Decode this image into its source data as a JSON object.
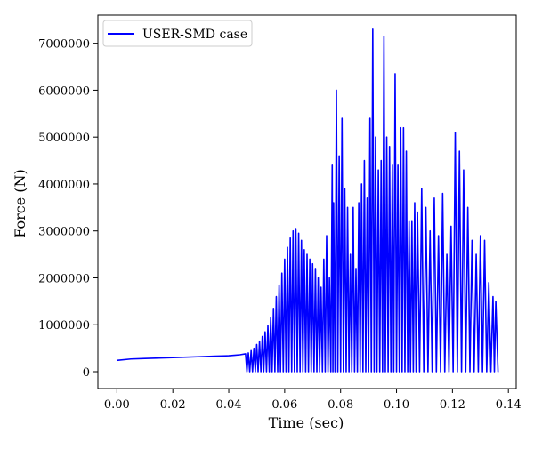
{
  "colors": {
    "series": "#0000ff",
    "axis": "#000000",
    "background": "#ffffff",
    "legend_border": "#cccccc"
  },
  "chart_data": {
    "type": "line",
    "title": "",
    "xlabel": "Time (sec)",
    "ylabel": "Force (N)",
    "xlim": [
      -0.0068,
      0.1428
    ],
    "ylim": [
      -360000,
      7600000
    ],
    "x_ticks": [
      0.0,
      0.02,
      0.04,
      0.06,
      0.08,
      0.1,
      0.12,
      0.14
    ],
    "x_tick_labels": [
      "0.00",
      "0.02",
      "0.04",
      "0.06",
      "0.08",
      "0.10",
      "0.12",
      "0.14"
    ],
    "y_ticks": [
      0,
      1000000,
      2000000,
      3000000,
      4000000,
      5000000,
      6000000,
      7000000
    ],
    "y_tick_labels": [
      "0",
      "1000000",
      "2000000",
      "3000000",
      "4000000",
      "5000000",
      "6000000",
      "7000000"
    ],
    "grid": false,
    "legend_position": "top-left",
    "series": [
      {
        "name": "USER-SMD case",
        "color": "#0000ff",
        "peaks": {
          "x": [
            0.047,
            0.048,
            0.049,
            0.05,
            0.051,
            0.052,
            0.053,
            0.054,
            0.055,
            0.056,
            0.057,
            0.058,
            0.059,
            0.06,
            0.061,
            0.062,
            0.063,
            0.064,
            0.065,
            0.066,
            0.067,
            0.068,
            0.069,
            0.07,
            0.071,
            0.072,
            0.073,
            0.074,
            0.075,
            0.076,
            0.077,
            0.0775,
            0.0785,
            0.0795,
            0.0805,
            0.0815,
            0.0825,
            0.0835,
            0.0845,
            0.0855,
            0.0865,
            0.0875,
            0.0885,
            0.0895,
            0.0905,
            0.0915,
            0.0925,
            0.0935,
            0.0945,
            0.0955,
            0.0965,
            0.0975,
            0.0985,
            0.0995,
            0.1005,
            0.1015,
            0.1025,
            0.1035,
            0.1045,
            0.1055,
            0.1065,
            0.1075,
            0.109,
            0.1105,
            0.112,
            0.1135,
            0.115,
            0.1165,
            0.118,
            0.1195,
            0.121,
            0.1225,
            0.124,
            0.1255,
            0.127,
            0.1285,
            0.13,
            0.1315,
            0.133,
            0.1345,
            0.1355
          ],
          "y": [
            400000,
            450000,
            500000,
            580000,
            650000,
            750000,
            850000,
            980000,
            1150000,
            1350000,
            1600000,
            1850000,
            2100000,
            2400000,
            2650000,
            2850000,
            3000000,
            3050000,
            2950000,
            2800000,
            2600000,
            2500000,
            2400000,
            2300000,
            2200000,
            2000000,
            1800000,
            2400000,
            2900000,
            2000000,
            4400000,
            3600000,
            6000000,
            4600000,
            5400000,
            3900000,
            3500000,
            2500000,
            3500000,
            2200000,
            3600000,
            4000000,
            4500000,
            3700000,
            5400000,
            7300000,
            5000000,
            4300000,
            4500000,
            7150000,
            5000000,
            4800000,
            4400000,
            6350000,
            4400000,
            5200000,
            5200000,
            4700000,
            3200000,
            3200000,
            3600000,
            3400000,
            3900000,
            3500000,
            3000000,
            3700000,
            2900000,
            3800000,
            2500000,
            3100000,
            5100000,
            4700000,
            4300000,
            3500000,
            2800000,
            2500000,
            2900000,
            2800000,
            1900000,
            1600000,
            1500000
          ]
        },
        "baseline": {
          "x": [
            0.0,
            0.005,
            0.01,
            0.02,
            0.03,
            0.035,
            0.04,
            0.042,
            0.044,
            0.046
          ],
          "y": [
            240000,
            270000,
            280000,
            300000,
            320000,
            330000,
            340000,
            350000,
            360000,
            380000
          ]
        }
      }
    ]
  }
}
